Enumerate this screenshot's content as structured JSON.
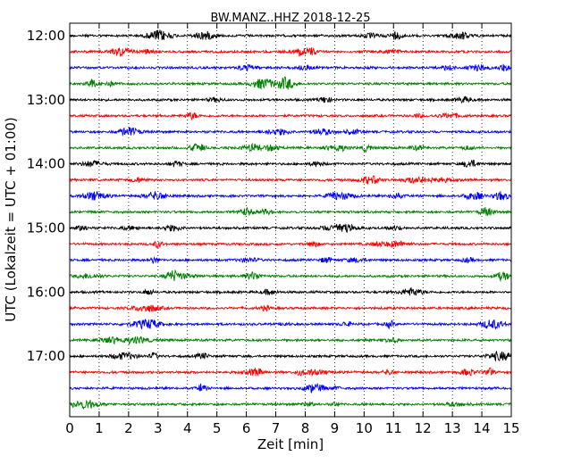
{
  "chart_data": {
    "type": "line",
    "title": "BW.MANZ..HHZ 2018-12-25",
    "xlabel": "Zeit  [min]",
    "ylabel": "UTC (Lokalzeit = UTC + 01:00)",
    "xlim": [
      0,
      15
    ],
    "x_ticks": [
      0,
      1,
      2,
      3,
      4,
      5,
      6,
      7,
      8,
      9,
      10,
      11,
      12,
      13,
      14,
      15
    ],
    "y_ticks": [
      "12:00",
      "13:00",
      "14:00",
      "15:00",
      "16:00",
      "17:00"
    ],
    "grid": "vertical-dotted",
    "trace_interval_minutes": 15,
    "start_time": "12:00",
    "trace_count": 24,
    "trace_colors": [
      "#000000",
      "#ff0000",
      "#0000ff",
      "#008000"
    ]
  }
}
